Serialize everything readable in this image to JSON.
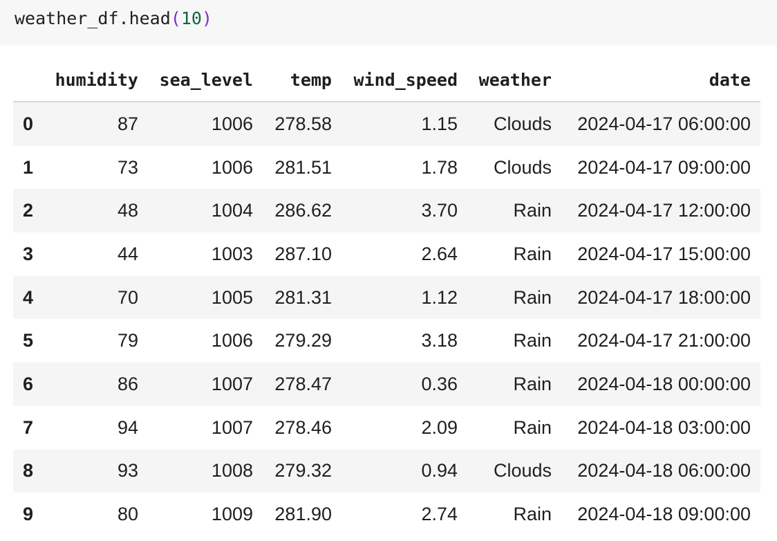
{
  "code_cell": {
    "prefix": "weather_df.head",
    "open_paren": "(",
    "argument": "10",
    "close_paren": ")"
  },
  "dataframe": {
    "columns": [
      "humidity",
      "sea_level",
      "temp",
      "wind_speed",
      "weather",
      "date"
    ],
    "rows": [
      {
        "index": "0",
        "humidity": "87",
        "sea_level": "1006",
        "temp": "278.58",
        "wind_speed": "1.15",
        "weather": "Clouds",
        "date": "2024-04-17 06:00:00"
      },
      {
        "index": "1",
        "humidity": "73",
        "sea_level": "1006",
        "temp": "281.51",
        "wind_speed": "1.78",
        "weather": "Clouds",
        "date": "2024-04-17 09:00:00"
      },
      {
        "index": "2",
        "humidity": "48",
        "sea_level": "1004",
        "temp": "286.62",
        "wind_speed": "3.70",
        "weather": "Rain",
        "date": "2024-04-17 12:00:00"
      },
      {
        "index": "3",
        "humidity": "44",
        "sea_level": "1003",
        "temp": "287.10",
        "wind_speed": "2.64",
        "weather": "Rain",
        "date": "2024-04-17 15:00:00"
      },
      {
        "index": "4",
        "humidity": "70",
        "sea_level": "1005",
        "temp": "281.31",
        "wind_speed": "1.12",
        "weather": "Rain",
        "date": "2024-04-17 18:00:00"
      },
      {
        "index": "5",
        "humidity": "79",
        "sea_level": "1006",
        "temp": "279.29",
        "wind_speed": "3.18",
        "weather": "Rain",
        "date": "2024-04-17 21:00:00"
      },
      {
        "index": "6",
        "humidity": "86",
        "sea_level": "1007",
        "temp": "278.47",
        "wind_speed": "0.36",
        "weather": "Rain",
        "date": "2024-04-18 00:00:00"
      },
      {
        "index": "7",
        "humidity": "94",
        "sea_level": "1007",
        "temp": "278.46",
        "wind_speed": "2.09",
        "weather": "Rain",
        "date": "2024-04-18 03:00:00"
      },
      {
        "index": "8",
        "humidity": "93",
        "sea_level": "1008",
        "temp": "279.32",
        "wind_speed": "0.94",
        "weather": "Clouds",
        "date": "2024-04-18 06:00:00"
      },
      {
        "index": "9",
        "humidity": "80",
        "sea_level": "1009",
        "temp": "281.90",
        "wind_speed": "2.74",
        "weather": "Rain",
        "date": "2024-04-18 09:00:00"
      }
    ]
  }
}
